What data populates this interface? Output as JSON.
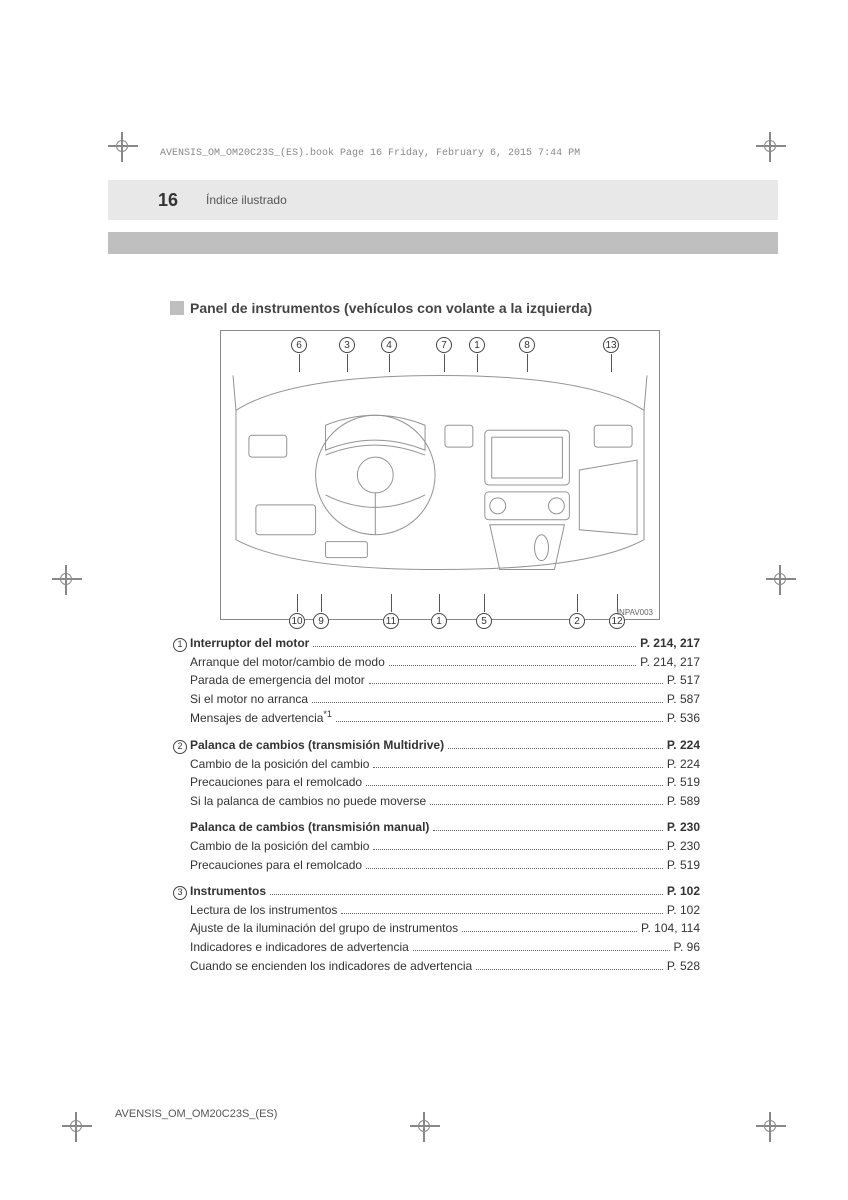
{
  "meta": {
    "header_line": "AVENSIS_OM_OM20C23S_(ES).book  Page 16  Friday, February 6, 2015  7:44 PM",
    "footer_line": "AVENSIS_OM_OM20C23S_(ES)"
  },
  "page": {
    "number": "16",
    "section": "Índice ilustrado"
  },
  "title": "Panel de instrumentos (vehículos con volante a la izquierda)",
  "diagram": {
    "id": "INPAV003",
    "callouts_top": [
      "6",
      "3",
      "4",
      "7",
      "1",
      "8",
      "13"
    ],
    "callouts_bottom": [
      "10",
      "9",
      "11",
      "1",
      "5",
      "2",
      "12"
    ],
    "border_color": "#888888",
    "line_color": "#555555"
  },
  "index": [
    {
      "marker": "1",
      "rows": [
        {
          "label": "Interruptor del motor",
          "page": "P. 214, 217",
          "bold": true
        },
        {
          "label": "Arranque del motor/cambio de modo",
          "page": "P. 214, 217"
        },
        {
          "label": "Parada de emergencia del motor",
          "page": "P. 517"
        },
        {
          "label": "Si el motor no arranca",
          "page": "P. 587"
        },
        {
          "label": "Mensajes de advertencia",
          "footnote": "*1",
          "page": "P. 536"
        }
      ]
    },
    {
      "marker": "2",
      "rows": [
        {
          "label": "Palanca de cambios (transmisión Multidrive)",
          "page": "P. 224",
          "bold": true
        },
        {
          "label": "Cambio de la posición del cambio",
          "page": "P. 224"
        },
        {
          "label": "Precauciones para el remolcado",
          "page": "P. 519"
        },
        {
          "label": "Si la palanca de cambios no puede moverse",
          "page": "P. 589"
        }
      ]
    },
    {
      "marker": "",
      "rows": [
        {
          "label": "Palanca de cambios (transmisión manual)",
          "page": "P. 230",
          "bold": true
        },
        {
          "label": "Cambio de la posición del cambio",
          "page": "P. 230"
        },
        {
          "label": "Precauciones para el remolcado",
          "page": "P. 519"
        }
      ]
    },
    {
      "marker": "3",
      "rows": [
        {
          "label": "Instrumentos",
          "page": "P. 102",
          "bold": true
        },
        {
          "label": "Lectura de los instrumentos",
          "page": "P. 102"
        },
        {
          "label": "Ajuste de la iluminación del grupo de instrumentos",
          "page": "P. 104, 114"
        },
        {
          "label": "Indicadores e indicadores de advertencia",
          "page": "P. 96"
        },
        {
          "label": "Cuando se encienden los indicadores de advertencia",
          "page": "P. 528"
        }
      ]
    }
  ],
  "colors": {
    "header_bg": "#e8e8e8",
    "bar_bg": "#bfbfbf",
    "text": "#333333",
    "muted": "#888888"
  }
}
